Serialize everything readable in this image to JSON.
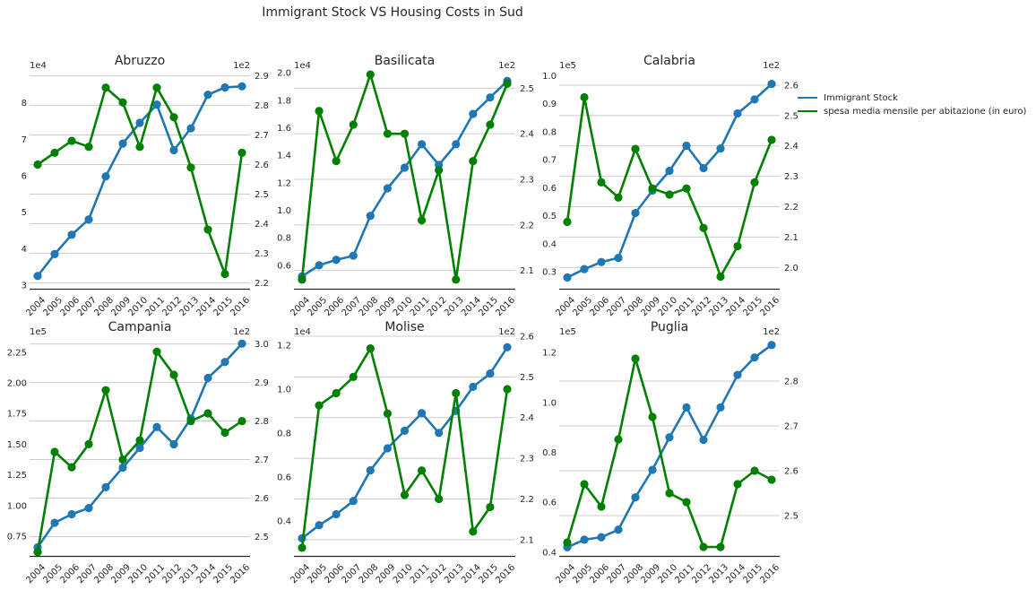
{
  "figure": {
    "suptitle": "Immigrant Stock VS Housing Costs in Sud",
    "legend": {
      "placement": "right",
      "entries": [
        {
          "label": "Immigrant Stock",
          "color": "#1f77b4"
        },
        {
          "label": "spesa media mensile per abitazione (in euro)",
          "color": "#008000"
        }
      ]
    }
  },
  "chart_data": [
    {
      "type": "line",
      "title": "Abruzzo",
      "x": [
        "2004",
        "2005",
        "2006",
        "2007",
        "2008",
        "2009",
        "2010",
        "2011",
        "2012",
        "2013",
        "2014",
        "2015",
        "2016"
      ],
      "grid": true,
      "left_axis": {
        "offset_label": "1e4",
        "ylim": [
          2.9,
          8.9
        ],
        "ticks": [
          3,
          4,
          5,
          6,
          7,
          8
        ],
        "tick_labels": [
          "3",
          "4",
          "5",
          "6",
          "7",
          "8"
        ]
      },
      "right_axis": {
        "offset_label": "1e2",
        "ylim": [
          2.18,
          2.92
        ],
        "ticks": [
          2.2,
          2.3,
          2.4,
          2.5,
          2.6,
          2.7,
          2.8,
          2.9
        ],
        "tick_labels": [
          "2.2",
          "2.3",
          "2.4",
          "2.5",
          "2.6",
          "2.7",
          "2.8",
          "2.9"
        ]
      },
      "series": [
        {
          "name": "Immigrant Stock",
          "axis": "left",
          "color": "#1f77b4",
          "values": [
            3.25,
            3.85,
            4.38,
            4.8,
            5.98,
            6.88,
            7.45,
            7.95,
            6.7,
            7.3,
            8.22,
            8.42,
            8.45
          ]
        },
        {
          "name": "spesa media mensile per abitazione (in euro)",
          "axis": "right",
          "color": "#008000",
          "values": [
            2.6,
            2.64,
            2.68,
            2.66,
            2.86,
            2.81,
            2.66,
            2.86,
            2.76,
            2.59,
            2.38,
            2.23,
            2.64
          ]
        }
      ]
    },
    {
      "type": "line",
      "title": "Basilicata",
      "x": [
        "2004",
        "2005",
        "2006",
        "2007",
        "2008",
        "2009",
        "2010",
        "2011",
        "2012",
        "2013",
        "2014",
        "2015",
        "2016"
      ],
      "grid": true,
      "left_axis": {
        "offset_label": "1e4",
        "ylim": [
          0.43,
          2.02
        ],
        "ticks": [
          0.6,
          0.8,
          1.0,
          1.2,
          1.4,
          1.6,
          1.8,
          2.0
        ],
        "tick_labels": [
          "0.6",
          "0.8",
          "1.0",
          "1.2",
          "1.4",
          "1.6",
          "1.8",
          "2.0"
        ]
      },
      "right_axis": {
        "offset_label": "1e2",
        "ylim": [
          2.06,
          2.54
        ],
        "ticks": [
          2.1,
          2.2,
          2.3,
          2.4,
          2.5
        ],
        "tick_labels": [
          "2.1",
          "2.2",
          "2.3",
          "2.4",
          "2.5"
        ]
      },
      "series": [
        {
          "name": "Immigrant Stock",
          "axis": "left",
          "color": "#1f77b4",
          "values": [
            0.52,
            0.6,
            0.64,
            0.67,
            0.96,
            1.16,
            1.31,
            1.48,
            1.33,
            1.48,
            1.7,
            1.82,
            1.94
          ]
        },
        {
          "name": "spesa media mensile per abitazione (in euro)",
          "axis": "right",
          "color": "#008000",
          "values": [
            2.08,
            2.45,
            2.34,
            2.42,
            2.53,
            2.4,
            2.4,
            2.21,
            2.32,
            2.08,
            2.34,
            2.42,
            2.51
          ]
        }
      ]
    },
    {
      "type": "line",
      "title": "Calabria",
      "x": [
        "2004",
        "2005",
        "2006",
        "2007",
        "2008",
        "2009",
        "2010",
        "2011",
        "2012",
        "2013",
        "2014",
        "2015",
        "2016"
      ],
      "grid": true,
      "left_axis": {
        "offset_label": "1e5",
        "ylim": [
          0.24,
          1.02
        ],
        "ticks": [
          0.3,
          0.4,
          0.5,
          0.6,
          0.7,
          0.8,
          0.9,
          1.0
        ],
        "tick_labels": [
          "0.3",
          "0.4",
          "0.5",
          "0.6",
          "0.7",
          "0.8",
          "0.9",
          "1.0"
        ]
      },
      "right_axis": {
        "offset_label": "1e2",
        "ylim": [
          1.93,
          2.65
        ],
        "ticks": [
          2.0,
          2.1,
          2.2,
          2.3,
          2.4,
          2.5,
          2.6
        ],
        "tick_labels": [
          "2.0",
          "2.1",
          "2.2",
          "2.3",
          "2.4",
          "2.5",
          "2.6"
        ]
      },
      "series": [
        {
          "name": "Immigrant Stock",
          "axis": "left",
          "color": "#1f77b4",
          "values": [
            0.28,
            0.31,
            0.335,
            0.35,
            0.51,
            0.59,
            0.66,
            0.75,
            0.67,
            0.74,
            0.865,
            0.915,
            0.97
          ]
        },
        {
          "name": "spesa media mensile per abitazione (in euro)",
          "axis": "right",
          "color": "#008000",
          "values": [
            2.15,
            2.56,
            2.28,
            2.23,
            2.39,
            2.26,
            2.24,
            2.26,
            2.13,
            1.97,
            2.07,
            2.28,
            2.42
          ]
        }
      ]
    },
    {
      "type": "line",
      "title": "Campania",
      "x": [
        "2004",
        "2005",
        "2006",
        "2007",
        "2008",
        "2009",
        "2010",
        "2011",
        "2012",
        "2013",
        "2014",
        "2015",
        "2016"
      ],
      "grid": true,
      "left_axis": {
        "offset_label": "1e5",
        "ylim": [
          0.59,
          2.38
        ],
        "ticks": [
          0.75,
          1.0,
          1.25,
          1.5,
          1.75,
          2.0,
          2.25
        ],
        "tick_labels": [
          "0.75",
          "1.00",
          "1.25",
          "1.50",
          "1.75",
          "2.00",
          "2.25"
        ]
      },
      "right_axis": {
        "offset_label": "1e2",
        "ylim": [
          2.45,
          3.02
        ],
        "ticks": [
          2.5,
          2.6,
          2.7,
          2.8,
          2.9,
          3.0
        ],
        "tick_labels": [
          "2.5",
          "2.6",
          "2.7",
          "2.8",
          "2.9",
          "3.0"
        ]
      },
      "series": [
        {
          "name": "Immigrant Stock",
          "axis": "left",
          "color": "#1f77b4",
          "values": [
            0.66,
            0.86,
            0.93,
            0.98,
            1.15,
            1.31,
            1.47,
            1.64,
            1.5,
            1.71,
            2.04,
            2.17,
            2.32
          ]
        },
        {
          "name": "spesa media mensile per abitazione (in euro)",
          "axis": "right",
          "color": "#008000",
          "values": [
            2.46,
            2.72,
            2.68,
            2.74,
            2.88,
            2.7,
            2.75,
            2.98,
            2.92,
            2.8,
            2.82,
            2.77,
            2.8
          ]
        }
      ]
    },
    {
      "type": "line",
      "title": "Molise",
      "x": [
        "2004",
        "2005",
        "2006",
        "2007",
        "2008",
        "2009",
        "2010",
        "2011",
        "2012",
        "2013",
        "2014",
        "2015",
        "2016"
      ],
      "grid": true,
      "left_axis": {
        "offset_label": "1e4",
        "ylim": [
          0.24,
          1.24
        ],
        "ticks": [
          0.4,
          0.6,
          0.8,
          1.0,
          1.2
        ],
        "tick_labels": [
          "0.4",
          "0.6",
          "0.8",
          "1.0",
          "1.2"
        ]
      },
      "right_axis": {
        "offset_label": "1e2",
        "ylim": [
          2.06,
          2.6
        ],
        "ticks": [
          2.1,
          2.2,
          2.3,
          2.4,
          2.5,
          2.6
        ],
        "tick_labels": [
          "2.1",
          "2.2",
          "2.3",
          "2.4",
          "2.5",
          "2.6"
        ]
      },
      "series": [
        {
          "name": "Immigrant Stock",
          "axis": "left",
          "color": "#1f77b4",
          "values": [
            0.32,
            0.38,
            0.43,
            0.49,
            0.63,
            0.73,
            0.81,
            0.89,
            0.8,
            0.9,
            1.01,
            1.07,
            1.19
          ]
        },
        {
          "name": "spesa media mensile per abitazione (in euro)",
          "axis": "right",
          "color": "#008000",
          "values": [
            2.08,
            2.43,
            2.46,
            2.5,
            2.57,
            2.41,
            2.21,
            2.27,
            2.2,
            2.46,
            2.12,
            2.18,
            2.47
          ]
        }
      ]
    },
    {
      "type": "line",
      "title": "Puglia",
      "x": [
        "2004",
        "2005",
        "2006",
        "2007",
        "2008",
        "2009",
        "2010",
        "2011",
        "2012",
        "2013",
        "2014",
        "2015",
        "2016"
      ],
      "grid": true,
      "left_axis": {
        "offset_label": "1e5",
        "ylim": [
          0.385,
          1.265
        ],
        "ticks": [
          0.4,
          0.6,
          0.8,
          1.0,
          1.2
        ],
        "tick_labels": [
          "0.4",
          "0.6",
          "0.8",
          "1.0",
          "1.2"
        ]
      },
      "right_axis": {
        "offset_label": "1e2",
        "ylim": [
          2.41,
          2.9
        ],
        "ticks": [
          2.5,
          2.6,
          2.7,
          2.8
        ],
        "tick_labels": [
          "2.5",
          "2.6",
          "2.7",
          "2.8"
        ]
      },
      "series": [
        {
          "name": "Immigrant Stock",
          "axis": "left",
          "color": "#1f77b4",
          "values": [
            0.42,
            0.45,
            0.46,
            0.49,
            0.62,
            0.73,
            0.86,
            0.98,
            0.85,
            0.98,
            1.11,
            1.18,
            1.23
          ]
        },
        {
          "name": "spesa media mensile per abitazione (in euro)",
          "axis": "right",
          "color": "#008000",
          "values": [
            2.44,
            2.57,
            2.52,
            2.67,
            2.85,
            2.72,
            2.55,
            2.53,
            2.43,
            2.43,
            2.57,
            2.6,
            2.58
          ]
        }
      ]
    }
  ]
}
